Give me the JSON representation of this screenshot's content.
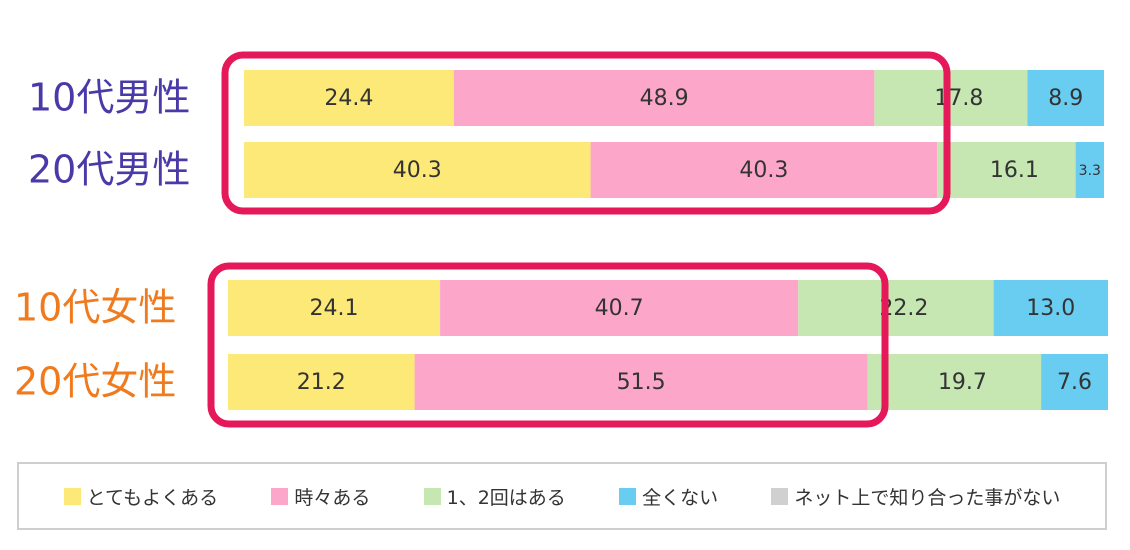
{
  "chart_data": {
    "type": "bar",
    "orientation": "horizontal",
    "stacked": true,
    "percent_scale": true,
    "categories": [
      "10代男性",
      "20代男性",
      "10代女性",
      "20代女性"
    ],
    "category_colors": [
      "#4a3aa8",
      "#4a3aa8",
      "#f07a1e",
      "#f07a1e"
    ],
    "groups": [
      {
        "categories": [
          "10代男性",
          "20代男性"
        ]
      },
      {
        "categories": [
          "10代女性",
          "20代女性"
        ]
      }
    ],
    "series": [
      {
        "name": "とてもよくある",
        "color": "#fde977",
        "values": [
          24.4,
          40.3,
          24.1,
          21.2
        ]
      },
      {
        "name": "時々ある",
        "color": "#fca7c9",
        "values": [
          48.9,
          40.3,
          40.7,
          51.5
        ]
      },
      {
        "name": "1、2回はある",
        "color": "#c6e6b2",
        "values": [
          17.8,
          16.1,
          22.2,
          19.7
        ]
      },
      {
        "name": "全くない",
        "color": "#69cdf2",
        "values": [
          8.9,
          3.3,
          13.0,
          7.6
        ]
      },
      {
        "name": "ネット上で知り合った事がない",
        "color": "#d0d0d0",
        "values": [
          0,
          0,
          0,
          0
        ]
      }
    ],
    "value_labels": [
      [
        "24.4",
        "48.9",
        "17.8",
        "8.9",
        ""
      ],
      [
        "40.3",
        "40.3",
        "16.1",
        "3.3",
        ""
      ],
      [
        "24.1",
        "40.7",
        "22.2",
        "13.0",
        ""
      ],
      [
        "21.2",
        "51.5",
        "19.7",
        "7.6",
        ""
      ]
    ],
    "highlight_color": "#e5195a",
    "legend": "bottom"
  }
}
